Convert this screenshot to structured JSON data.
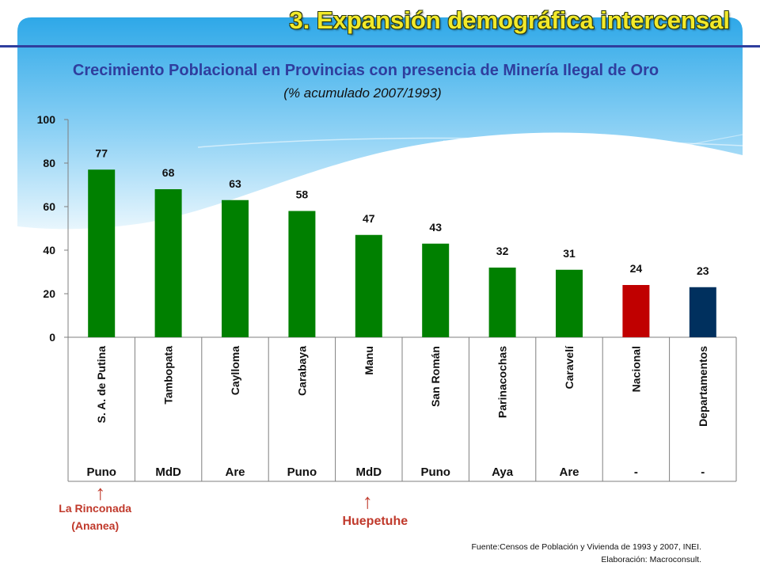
{
  "slide": {
    "title": "3. Expansión demográfica intercensal",
    "source_line1": "Fuente:Censos  de Población  y  Vivienda de 1993 y 2007, INEI.",
    "source_line2": "Elaboración:  Macroconsult."
  },
  "annotations": [
    {
      "text_line1": "La Rinconada",
      "text_line2": "(Ananea)",
      "category_index": 0
    },
    {
      "text_line1": "Huepetuhe",
      "text_line2": "",
      "category_index": 4
    }
  ],
  "colors": {
    "bar_default": "#008000",
    "bar_nacional": "#c00000",
    "bar_departamentos": "#00305e",
    "title_blue": "#2f3e9e",
    "annotation_red": "#c0392b"
  },
  "chart_data": {
    "type": "bar",
    "title": "Crecimiento Poblacional en Provincias con presencia de Minería Ilegal de Oro",
    "subtitle": "(% acumulado 2007/1993)",
    "categories": [
      "S. A. de Putina",
      "Tambopata",
      "Caylloma",
      "Carabaya",
      "Manu",
      "San Román",
      "Parinacochas",
      "Caravelí",
      "Nacional",
      "Departamentos"
    ],
    "regions": [
      "Puno",
      "MdD",
      "Are",
      "Puno",
      "MdD",
      "Puno",
      "Aya",
      "Are",
      "-",
      "-"
    ],
    "values": [
      77,
      68,
      63,
      58,
      47,
      43,
      32,
      31,
      24,
      23
    ],
    "bar_colors": [
      "#008000",
      "#008000",
      "#008000",
      "#008000",
      "#008000",
      "#008000",
      "#008000",
      "#008000",
      "#c00000",
      "#00305e"
    ],
    "ylim": [
      0,
      100
    ],
    "yticks": [
      0,
      20,
      40,
      60,
      80,
      100
    ],
    "grid": false,
    "legend": "none",
    "data_labels": true
  }
}
